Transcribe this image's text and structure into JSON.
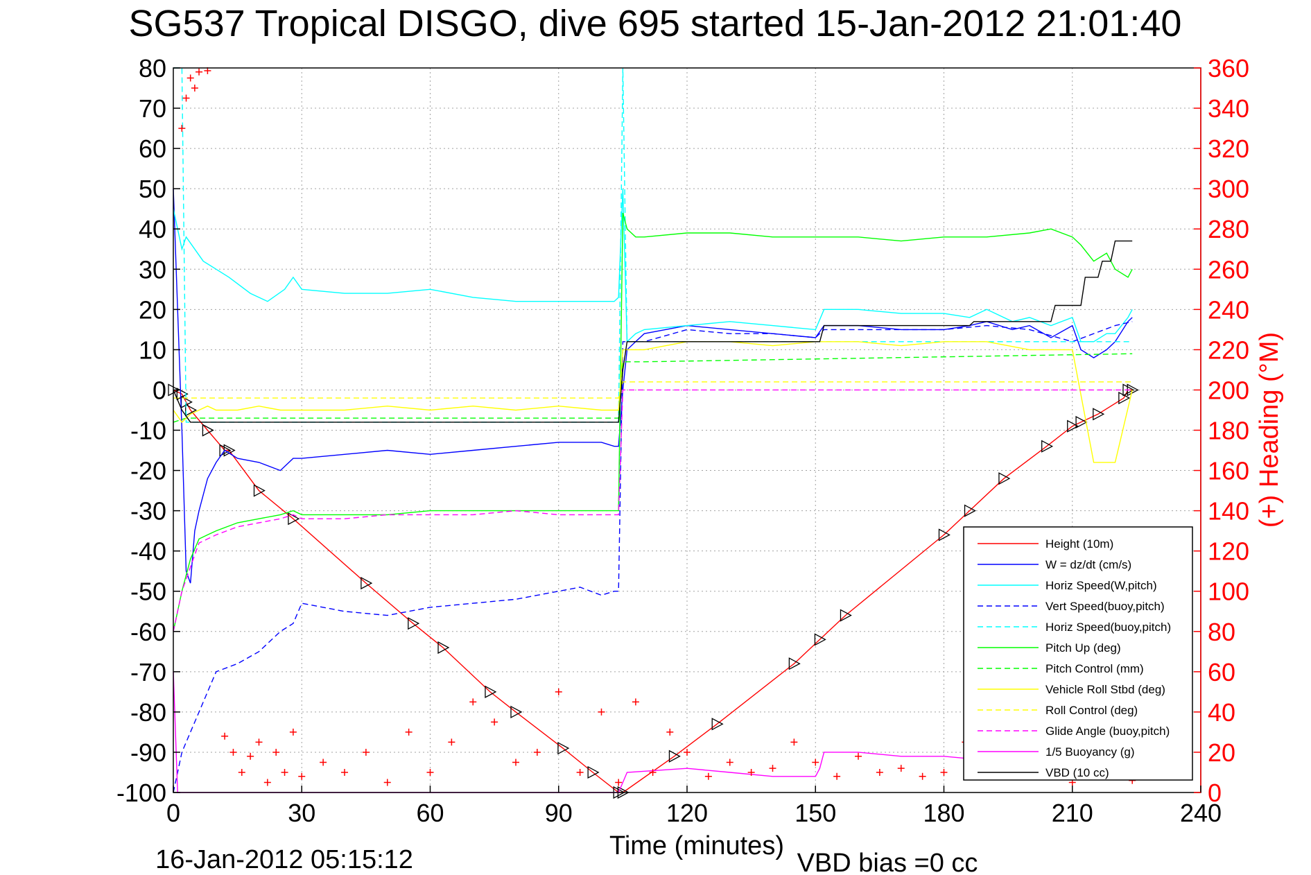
{
  "chart_data": {
    "type": "line",
    "title": "SG537 Tropical DISGO, dive 695 started 15-Jan-2012 21:01:40",
    "xlabel": "Time (minutes)",
    "ylabel_right": "(+) Heading (°M)",
    "footer_left": "16-Jan-2012 05:15:12",
    "footer_right": "VBD bias =0 cc",
    "xlim": [
      0,
      240
    ],
    "ylim": [
      -100,
      80
    ],
    "ylim_right": [
      0,
      360
    ],
    "x_ticks": [
      0,
      30,
      60,
      90,
      120,
      150,
      180,
      210,
      240
    ],
    "x_tick_labels": [
      "0",
      "30",
      "60",
      "90",
      "120",
      "150",
      "180",
      "210",
      "240"
    ],
    "y_ticks": [
      80,
      70,
      60,
      50,
      40,
      30,
      20,
      10,
      0,
      -10,
      -20,
      -30,
      -40,
      -50,
      -60,
      -70,
      -80,
      -90,
      -100
    ],
    "y_tick_labels": [
      "80",
      "70",
      "60",
      "50",
      "40",
      "30",
      "20",
      "10",
      "0",
      "-10",
      "-20",
      "-30",
      "-40",
      "-50",
      "-60",
      "-70",
      "-80",
      "-90",
      "-100"
    ],
    "y2_ticks": [
      360,
      340,
      320,
      300,
      280,
      260,
      240,
      220,
      200,
      180,
      160,
      140,
      120,
      100,
      80,
      60,
      40,
      20,
      0
    ],
    "y2_tick_labels": [
      "360",
      "340",
      "320",
      "300",
      "280",
      "260",
      "240",
      "220",
      "200",
      "180",
      "160",
      "140",
      "120",
      "100",
      "80",
      "60",
      "40",
      "20",
      "0"
    ],
    "grid": true,
    "legend_position": "bottom-right",
    "series": [
      {
        "name": "Height (10m)",
        "color": "#ff0000",
        "style": "solid",
        "marker": "triangle",
        "x": [
          0,
          2,
          3,
          4,
          8,
          12,
          13,
          20,
          28,
          45,
          56,
          63,
          74,
          80,
          91,
          98,
          104,
          105,
          117,
          127,
          145,
          151,
          157,
          180,
          186,
          194,
          204,
          210,
          212,
          216,
          222,
          223,
          224
        ],
        "values": [
          0,
          -1,
          -3,
          -5,
          -10,
          -15,
          -15,
          -25,
          -32,
          -48,
          -58,
          -64,
          -75,
          -80,
          -89,
          -95,
          -100,
          -100,
          -91,
          -83,
          -68,
          -62,
          -56,
          -36,
          -30,
          -22,
          -14,
          -9,
          -8,
          -6,
          -2,
          0,
          0
        ]
      },
      {
        "name": "W = dz/dt (cm/s)",
        "color": "#0000ff",
        "style": "solid",
        "x": [
          0,
          1,
          2,
          3,
          4,
          5,
          6,
          8,
          10,
          12,
          15,
          20,
          25,
          28,
          30,
          40,
          50,
          60,
          70,
          80,
          90,
          100,
          103,
          104,
          105,
          106,
          108,
          110,
          120,
          130,
          140,
          150,
          152,
          160,
          170,
          180,
          186,
          190,
          196,
          200,
          205,
          210,
          212,
          215,
          218,
          220,
          223,
          224
        ],
        "values": [
          50,
          20,
          -10,
          -45,
          -48,
          -35,
          -30,
          -22,
          -18,
          -15,
          -17,
          -18,
          -20,
          -17,
          -17,
          -16,
          -15,
          -16,
          -15,
          -14,
          -13,
          -13,
          -14,
          -14,
          0,
          10,
          12,
          14,
          16,
          15,
          14,
          13,
          16,
          16,
          15,
          15,
          16,
          17,
          15,
          16,
          13,
          16,
          10,
          8,
          10,
          12,
          17,
          18
        ]
      },
      {
        "name": "Horiz Speed(W,pitch)",
        "color": "#00ffff",
        "style": "solid",
        "x": [
          0,
          2,
          3,
          5,
          7,
          10,
          13,
          18,
          22,
          26,
          28,
          30,
          40,
          50,
          60,
          70,
          80,
          90,
          100,
          103,
          104,
          105,
          106,
          108,
          110,
          120,
          130,
          140,
          150,
          152,
          160,
          170,
          180,
          186,
          190,
          196,
          200,
          205,
          210,
          212,
          215,
          218,
          220,
          223,
          224
        ],
        "values": [
          45,
          35,
          38,
          35,
          32,
          30,
          28,
          24,
          22,
          25,
          28,
          25,
          24,
          24,
          25,
          23,
          22,
          22,
          22,
          22,
          23,
          50,
          12,
          14,
          15,
          16,
          17,
          16,
          15,
          20,
          20,
          19,
          19,
          18,
          20,
          17,
          18,
          16,
          18,
          12,
          12,
          14,
          14,
          18,
          20
        ]
      },
      {
        "name": "Vert Speed(buoy,pitch)",
        "color": "#0000ff",
        "style": "dashed",
        "x": [
          0,
          2,
          4,
          6,
          8,
          10,
          15,
          20,
          25,
          28,
          30,
          40,
          50,
          60,
          70,
          80,
          90,
          95,
          100,
          103,
          104,
          105,
          110,
          120,
          130,
          140,
          150,
          152,
          160,
          170,
          180,
          190,
          200,
          210,
          220,
          224
        ],
        "values": [
          -100,
          -90,
          -85,
          -80,
          -75,
          -70,
          -68,
          -65,
          -60,
          -58,
          -53,
          -55,
          -56,
          -54,
          -53,
          -52,
          -50,
          -49,
          -51,
          -50,
          -50,
          12,
          12,
          15,
          14,
          14,
          13,
          15,
          15,
          15,
          15,
          16,
          15,
          12,
          16,
          17
        ]
      },
      {
        "name": "Horiz Speed(buoy,pitch)",
        "color": "#00ffff",
        "style": "dashed",
        "x": [
          0,
          2,
          3,
          104,
          105,
          106,
          224
        ],
        "values": [
          80,
          80,
          -8,
          -8,
          80,
          12,
          12
        ]
      },
      {
        "name": "Pitch Up (deg)",
        "color": "#00ff00",
        "style": "solid",
        "x": [
          0,
          2,
          4,
          6,
          8,
          10,
          15,
          20,
          25,
          28,
          30,
          40,
          50,
          60,
          70,
          80,
          90,
          100,
          103,
          104,
          105,
          106,
          108,
          110,
          120,
          130,
          140,
          150,
          160,
          170,
          180,
          190,
          200,
          205,
          210,
          212,
          215,
          218,
          220,
          223,
          224
        ],
        "values": [
          -60,
          -50,
          -42,
          -37,
          -36,
          -35,
          -33,
          -32,
          -31,
          -30,
          -31,
          -31,
          -31,
          -30,
          -30,
          -30,
          -30,
          -30,
          -30,
          -30,
          44,
          40,
          38,
          38,
          39,
          39,
          38,
          38,
          38,
          37,
          38,
          38,
          39,
          40,
          38,
          36,
          32,
          34,
          30,
          28,
          30
        ]
      },
      {
        "name": "Pitch Control (mm)",
        "color": "#00ff00",
        "style": "dashed",
        "x": [
          0,
          3,
          104,
          105,
          110,
          224
        ],
        "values": [
          -8,
          -7,
          -7,
          7,
          7,
          9
        ]
      },
      {
        "name": "Vehicle Roll Stbd (deg)",
        "color": "#ffff00",
        "style": "solid",
        "x": [
          0,
          2,
          4,
          6,
          8,
          10,
          15,
          20,
          25,
          28,
          30,
          40,
          50,
          60,
          70,
          80,
          90,
          100,
          104,
          105,
          110,
          120,
          130,
          140,
          150,
          160,
          170,
          180,
          190,
          200,
          210,
          215,
          220,
          224
        ],
        "values": [
          -5,
          -8,
          -6,
          -5,
          -4,
          -5,
          -5,
          -4,
          -5,
          -5,
          -5,
          -5,
          -4,
          -5,
          -4,
          -5,
          -4,
          -5,
          -5,
          10,
          10,
          12,
          12,
          11,
          12,
          12,
          11,
          12,
          12,
          10,
          10,
          -18,
          -18,
          0
        ]
      },
      {
        "name": "Roll Control (deg)",
        "color": "#ffff00",
        "style": "dashed",
        "x": [
          0,
          3,
          30,
          104,
          105,
          224
        ],
        "values": [
          -2,
          -2,
          -2,
          -2,
          2,
          2
        ]
      },
      {
        "name": "Glide Angle (buoy,pitch)",
        "color": "#ff00ff",
        "style": "dashed",
        "x": [
          0,
          2,
          4,
          6,
          8,
          10,
          15,
          20,
          25,
          28,
          30,
          40,
          50,
          60,
          70,
          80,
          90,
          100,
          104,
          105,
          224
        ],
        "values": [
          -60,
          -50,
          -44,
          -38,
          -37,
          -36,
          -34,
          -33,
          -32,
          -31,
          -32,
          -32,
          -31,
          -31,
          -31,
          -30,
          -31,
          -31,
          -31,
          0,
          0
        ]
      },
      {
        "name": "1/5 Buoyancy (g)",
        "color": "#ff00ff",
        "style": "solid",
        "x": [
          0,
          1,
          104,
          106,
          120,
          130,
          140,
          150,
          151,
          152,
          160,
          170,
          180,
          190,
          200,
          204
        ],
        "values": [
          -70,
          -100,
          -100,
          -95,
          -94,
          -95,
          -96,
          -96,
          -94,
          -90,
          -90,
          -91,
          -91,
          -92,
          -92,
          -92
        ]
      },
      {
        "name": "VBD (10 cc)",
        "color": "#000000",
        "style": "solid",
        "x": [
          0,
          2,
          4,
          104,
          105,
          106,
          110,
          151,
          152,
          186,
          187,
          205,
          206,
          212,
          213,
          216,
          217,
          219,
          220,
          224
        ],
        "values": [
          0,
          -5,
          -8,
          -8,
          5,
          12,
          12,
          12,
          16,
          16,
          17,
          17,
          21,
          21,
          28,
          28,
          32,
          32,
          37,
          37
        ]
      },
      {
        "name": "(+) Heading",
        "color": "#ff0000",
        "style": "markers",
        "axis": "right",
        "x": [
          2,
          3,
          4,
          5,
          6,
          8,
          12,
          14,
          16,
          18,
          20,
          22,
          24,
          26,
          28,
          30,
          35,
          40,
          45,
          50,
          55,
          60,
          65,
          70,
          75,
          80,
          85,
          90,
          95,
          100,
          104,
          108,
          112,
          116,
          120,
          125,
          130,
          135,
          140,
          145,
          150,
          155,
          160,
          165,
          170,
          175,
          180,
          185,
          190,
          195,
          200,
          205,
          210,
          215,
          220,
          224
        ],
        "values": [
          330,
          345,
          355,
          350,
          358,
          360,
          28,
          20,
          10,
          18,
          25,
          5,
          20,
          10,
          30,
          8,
          15,
          10,
          20,
          5,
          30,
          10,
          25,
          45,
          35,
          15,
          20,
          50,
          10,
          40,
          5,
          45,
          10,
          30,
          20,
          8,
          15,
          10,
          12,
          25,
          15,
          8,
          18,
          10,
          12,
          8,
          10,
          25,
          20,
          15,
          10,
          8,
          5,
          10,
          8,
          6
        ]
      }
    ]
  }
}
